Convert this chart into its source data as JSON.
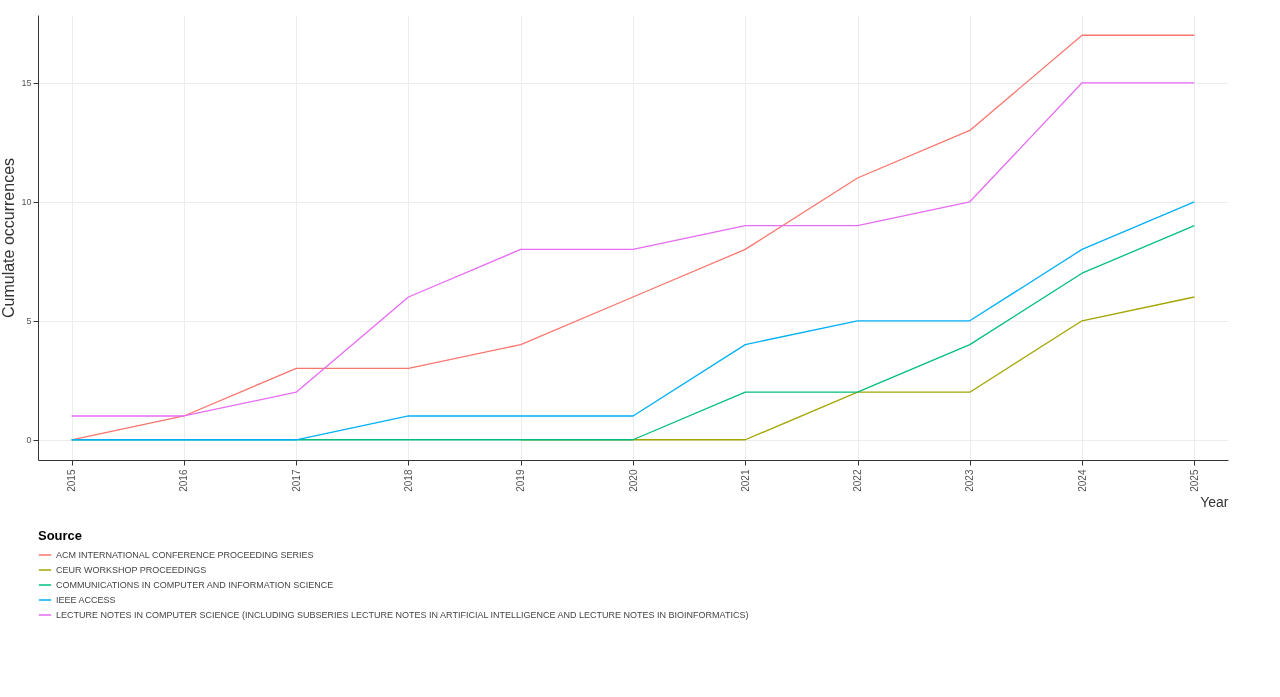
{
  "chart_data": {
    "type": "line",
    "xlabel": "Year",
    "ylabel": "Cumulate occurrences",
    "legend_title": "Source",
    "categories": [
      "2015",
      "2016",
      "2017",
      "2018",
      "2019",
      "2020",
      "2021",
      "2022",
      "2023",
      "2024",
      "2025"
    ],
    "series": [
      {
        "name": "ACM INTERNATIONAL CONFERENCE PROCEEDING SERIES",
        "color": "#f8766d",
        "values": [
          0,
          1,
          3,
          3,
          4,
          6,
          8,
          11,
          13,
          17,
          17
        ]
      },
      {
        "name": "CEUR WORKSHOP PROCEEDINGS",
        "color": "#a3a500",
        "values": [
          null,
          null,
          null,
          null,
          0,
          0,
          0,
          2,
          2,
          5,
          6
        ]
      },
      {
        "name": "COMMUNICATIONS IN COMPUTER AND INFORMATION SCIENCE",
        "color": "#00bf7d",
        "values": [
          0,
          0,
          0,
          0,
          0,
          0,
          2,
          2,
          4,
          7,
          9
        ]
      },
      {
        "name": "IEEE ACCESS",
        "color": "#00b0f6",
        "values": [
          0,
          0,
          0,
          1,
          1,
          1,
          4,
          5,
          5,
          8,
          10
        ]
      },
      {
        "name": "LECTURE NOTES IN COMPUTER SCIENCE (INCLUDING SUBSERIES LECTURE NOTES IN ARTIFICIAL INTELLIGENCE AND LECTURE NOTES IN BIOINFORMATICS)",
        "color": "#e76bf3",
        "values": [
          1,
          1,
          2,
          6,
          8,
          8,
          9,
          9,
          10,
          15,
          15
        ]
      }
    ],
    "ylim": [
      -0.85,
      17.85
    ],
    "yticks": [
      0,
      5,
      10,
      15
    ],
    "grid": true,
    "legend": "bottom",
    "line_style": "solid"
  }
}
